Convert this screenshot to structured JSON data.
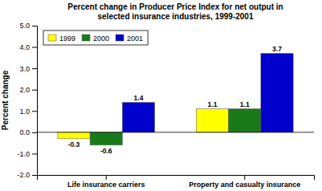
{
  "chart_data": {
    "type": "bar",
    "title": "Percent change in Producer Price Index for net output in\nselected insurance industries, 1999-2001",
    "ylabel": "Percent change",
    "categories": [
      "Life insurance carriers",
      "Property and casualty insurance"
    ],
    "series": [
      {
        "name": "1999",
        "color": "#ffff00",
        "values": [
          -0.3,
          1.1
        ]
      },
      {
        "name": "2000",
        "color": "#1a7a1a",
        "values": [
          -0.6,
          1.1
        ]
      },
      {
        "name": "2001",
        "color": "#0000cc",
        "values": [
          1.4,
          3.7
        ]
      }
    ],
    "ylim": [
      -2.0,
      5.0
    ],
    "yticks": [
      {
        "value": -2.0,
        "label": "-2.0"
      },
      {
        "value": -1.0,
        "label": "-1.0"
      },
      {
        "value": 0.0,
        "label": "0.0"
      },
      {
        "value": 1.0,
        "label": "1.0"
      },
      {
        "value": 2.0,
        "label": "2.0"
      },
      {
        "value": 3.0,
        "label": "3.0"
      },
      {
        "value": 4.0,
        "label": "4.0"
      },
      {
        "value": 5.0,
        "label": "5.0"
      }
    ],
    "grid": false,
    "legend": "upper left",
    "data_labels": true
  }
}
